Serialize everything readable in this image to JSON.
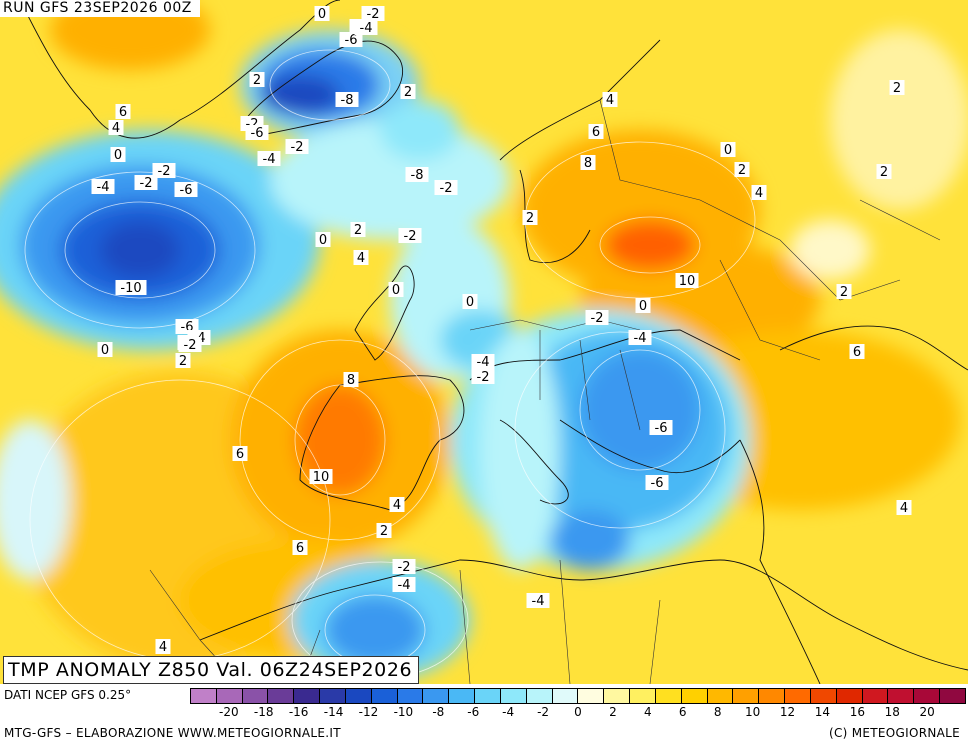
{
  "header": {
    "run_title": "RUN GFS 23SEP2026 00Z"
  },
  "map": {
    "title": "TMP ANOMALY Z850 Val. 06Z24SEP2026",
    "contour_labels": [
      "0",
      "-2",
      "-4",
      "-6",
      "-4",
      "2",
      "-8",
      "2",
      "6",
      "4",
      "-2",
      "-6",
      "-2",
      "-4",
      "-2",
      "0",
      "-2",
      "-4",
      "-6",
      "-8",
      "-2",
      "-2",
      "-10",
      "0",
      "2",
      "4",
      "-2",
      "0",
      "-6",
      "-4",
      "-2",
      "2",
      "0",
      "8",
      "6",
      "4",
      "4",
      "2",
      "0",
      "2",
      "10",
      "2",
      "-2",
      "0",
      "-4",
      "-4",
      "-2",
      "6",
      "8",
      "-6",
      "6",
      "10",
      "-6",
      "0",
      "4",
      "2",
      "6",
      "4",
      "2",
      "-2",
      "-4",
      "-4",
      "4",
      "2"
    ]
  },
  "legend": {
    "data_source": "DATI NCEP GFS 0.25°",
    "colors": [
      "#c080c8",
      "#a868b8",
      "#8a52a8",
      "#6a3c98",
      "#3a2a90",
      "#2a3aa8",
      "#1a48c0",
      "#1a60d8",
      "#2a7ae8",
      "#3a98f0",
      "#4ab8f5",
      "#6ad4f8",
      "#8ee8fa",
      "#b8f4fa",
      "#e0fafa",
      "#fffde0",
      "#fff8a0",
      "#fff060",
      "#ffe020",
      "#ffd000",
      "#ffb800",
      "#ffa000",
      "#ff8800",
      "#ff6a00",
      "#f04800",
      "#e02800",
      "#d01820",
      "#c01030",
      "#a80838",
      "#900840"
    ],
    "ticks": [
      "-20",
      "-18",
      "-16",
      "-14",
      "-12",
      "-10",
      "-8",
      "-6",
      "-4",
      "-2",
      "0",
      "2",
      "4",
      "6",
      "8",
      "10",
      "12",
      "14",
      "16",
      "18",
      "20"
    ]
  },
  "footer": {
    "credit": "MTG-GFS – ELABORAZIONE WWW.METEOGIORNALE.IT",
    "copyright": "(C) METEOGIORNALE"
  }
}
